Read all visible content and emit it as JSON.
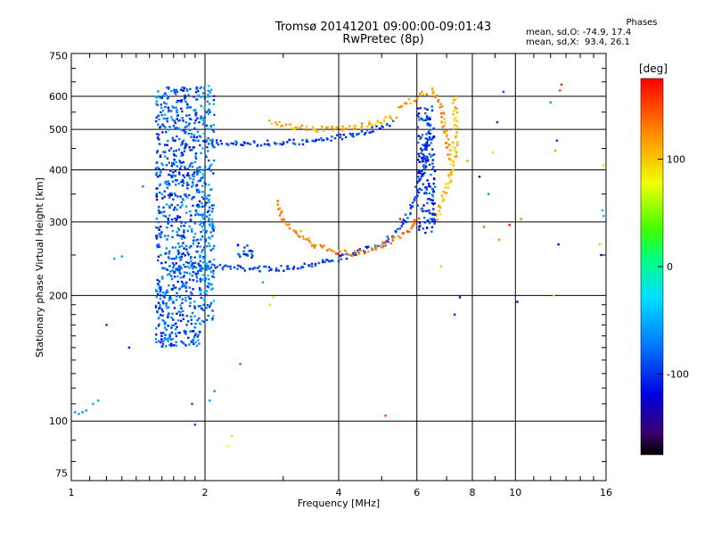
{
  "header": {
    "title": "Tromsø 20141201 09:00:00-09:01:43",
    "subtitle": "RwPretec (8p)"
  },
  "phases": {
    "heading": "Phases",
    "line_o": "mean, sd,O: -74.9, 17.4",
    "line_x": "mean, sd,X:  93.4, 26.1"
  },
  "colorbar": {
    "label": "[deg]",
    "ticks": [
      {
        "label": "100",
        "value": 100
      },
      {
        "label": "0",
        "value": 0
      },
      {
        "label": "-100",
        "value": -100
      }
    ]
  },
  "chart_data": {
    "type": "scatter",
    "title": "Tromsø 20141201 09:00:00-09:01:43",
    "subtitle": "RwPretec (8p)",
    "xlabel": "Frequency [MHz]",
    "ylabel": "Stationary phase Virtual Height [km]",
    "x_scale": "log",
    "y_scale": "log",
    "xlim": [
      1,
      16
    ],
    "ylim": [
      72,
      760
    ],
    "x_ticks": [
      1,
      2,
      4,
      6,
      8,
      10,
      16
    ],
    "x_tick_labels": [
      "1",
      "2",
      "4",
      "6",
      "8",
      "10",
      "16"
    ],
    "y_ticks": [
      75,
      100,
      200,
      300,
      400,
      500,
      600,
      750
    ],
    "y_tick_labels": [
      "75",
      "100",
      "200",
      "300",
      "400",
      "500",
      "600",
      "750"
    ],
    "grid": true,
    "color_scale": {
      "label": "[deg]",
      "range": [
        -175,
        175
      ]
    },
    "traces": [
      {
        "name": "",
        "x": [
          2.0,
          2.5,
          3.0,
          3.5,
          4.0,
          4.5,
          5.0,
          5.5,
          5.8,
          6.2,
          6.4
        ],
        "y": [
          235,
          232,
          232,
          238,
          245,
          255,
          265,
          290,
          320,
          400,
          520
        ],
        "phase": -95
      },
      {
        "name": "",
        "x": [
          2.9,
          3.0,
          3.2,
          3.5,
          3.9,
          4.3,
          4.8,
          5.3,
          5.8,
          6.1
        ],
        "y": [
          340,
          300,
          285,
          265,
          255,
          252,
          258,
          270,
          290,
          312
        ],
        "phase": 130
      },
      {
        "name": "",
        "x": [
          6.6,
          6.9,
          7.1,
          7.3,
          7.35,
          7.3
        ],
        "y": [
          300,
          340,
          380,
          430,
          500,
          600
        ],
        "phase": 105
      },
      {
        "name": "",
        "x": [
          2.0,
          2.5,
          3.0,
          3.5,
          4.0,
          4.5,
          5.0,
          5.3
        ],
        "y": [
          465,
          462,
          465,
          468,
          478,
          492,
          505,
          520
        ],
        "phase": -95
      },
      {
        "name": "",
        "x": [
          2.8,
          3.2,
          3.6,
          4.0,
          4.5,
          5.0,
          5.4
        ],
        "y": [
          520,
          505,
          500,
          502,
          510,
          520,
          540
        ],
        "phase": 110
      },
      {
        "name": "",
        "x": [
          5.5,
          6.0,
          6.5,
          6.8,
          7.0,
          7.1
        ],
        "y": [
          560,
          600,
          620,
          560,
          480,
          420
        ],
        "phase": 120
      }
    ],
    "clusters": [
      {
        "x": [
          1.55,
          1.95
        ],
        "y": [
          150,
          630
        ],
        "phase": -85
      },
      {
        "x": [
          1.95,
          2.1
        ],
        "y": [
          170,
          640
        ],
        "phase": -70
      },
      {
        "x": [
          2.35,
          2.6
        ],
        "y": [
          245,
          265
        ],
        "phase": -85
      },
      {
        "x": [
          6.0,
          6.6
        ],
        "y": [
          280,
          580
        ],
        "phase": -100
      }
    ],
    "scatter_points": [
      {
        "x": 1.02,
        "y": 105,
        "phase": -60
      },
      {
        "x": 1.04,
        "y": 104,
        "phase": -60
      },
      {
        "x": 1.06,
        "y": 105,
        "phase": -60
      },
      {
        "x": 1.08,
        "y": 106,
        "phase": -60
      },
      {
        "x": 1.12,
        "y": 110,
        "phase": -50
      },
      {
        "x": 1.15,
        "y": 112,
        "phase": -50
      },
      {
        "x": 1.25,
        "y": 245,
        "phase": -55
      },
      {
        "x": 1.3,
        "y": 248,
        "phase": -55
      },
      {
        "x": 1.45,
        "y": 365,
        "phase": -70
      },
      {
        "x": 1.2,
        "y": 170,
        "phase": -100
      },
      {
        "x": 1.35,
        "y": 150,
        "phase": -110
      },
      {
        "x": 2.05,
        "y": 112,
        "phase": -60
      },
      {
        "x": 2.1,
        "y": 118,
        "phase": -65
      },
      {
        "x": 1.87,
        "y": 110,
        "phase": -90
      },
      {
        "x": 1.9,
        "y": 98,
        "phase": -95
      },
      {
        "x": 2.3,
        "y": 92,
        "phase": 90
      },
      {
        "x": 2.25,
        "y": 87,
        "phase": 80
      },
      {
        "x": 2.4,
        "y": 137,
        "phase": 150
      },
      {
        "x": 2.8,
        "y": 190,
        "phase": 95
      },
      {
        "x": 2.85,
        "y": 198,
        "phase": 90
      },
      {
        "x": 2.7,
        "y": 215,
        "phase": -50
      },
      {
        "x": 5.1,
        "y": 103,
        "phase": 150
      },
      {
        "x": 5.5,
        "y": 305,
        "phase": 160
      },
      {
        "x": 6.8,
        "y": 235,
        "phase": 100
      },
      {
        "x": 7.5,
        "y": 198,
        "phase": -120
      },
      {
        "x": 7.3,
        "y": 180,
        "phase": -100
      },
      {
        "x": 7.8,
        "y": 420,
        "phase": 120
      },
      {
        "x": 8.3,
        "y": 385,
        "phase": -150
      },
      {
        "x": 8.5,
        "y": 292,
        "phase": 140
      },
      {
        "x": 8.7,
        "y": 350,
        "phase": -60
      },
      {
        "x": 8.9,
        "y": 440,
        "phase": 95
      },
      {
        "x": 9.1,
        "y": 520,
        "phase": -100
      },
      {
        "x": 9.2,
        "y": 272,
        "phase": 120
      },
      {
        "x": 9.4,
        "y": 615,
        "phase": -90
      },
      {
        "x": 9.7,
        "y": 295,
        "phase": 170
      },
      {
        "x": 10.1,
        "y": 193,
        "phase": -130
      },
      {
        "x": 10.3,
        "y": 305,
        "phase": 130
      },
      {
        "x": 12.5,
        "y": 265,
        "phase": -120
      },
      {
        "x": 12.3,
        "y": 445,
        "phase": 120
      },
      {
        "x": 12.4,
        "y": 470,
        "phase": -100
      },
      {
        "x": 12.0,
        "y": 580,
        "phase": -60
      },
      {
        "x": 12.7,
        "y": 640,
        "phase": 160
      },
      {
        "x": 12.6,
        "y": 620,
        "phase": 150
      },
      {
        "x": 12.2,
        "y": 200,
        "phase": 95
      },
      {
        "x": 15.5,
        "y": 265,
        "phase": 100
      },
      {
        "x": 15.7,
        "y": 320,
        "phase": -40
      },
      {
        "x": 15.8,
        "y": 410,
        "phase": 95
      },
      {
        "x": 15.6,
        "y": 250,
        "phase": -120
      },
      {
        "x": 15.8,
        "y": 310,
        "phase": -50
      }
    ]
  }
}
